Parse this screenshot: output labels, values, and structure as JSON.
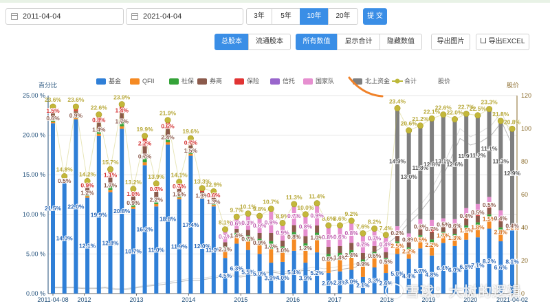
{
  "controls": {
    "start_date": "2011-04-04",
    "end_date": "2021-04-04",
    "period_buttons": [
      "3年",
      "5年",
      "10年",
      "20年"
    ],
    "period_active": 2,
    "submit": "提 交",
    "share_type_buttons": [
      "总股本",
      "流通股本"
    ],
    "share_type_active": 0,
    "display_buttons": [
      "所有数值",
      "显示合计",
      "隐藏数值"
    ],
    "display_active": 0,
    "export_image": "导出图片",
    "export_excel": "导出EXCEL"
  },
  "watermark": "雪球：大树的逻辑",
  "chart_data": {
    "type": "bar",
    "stacked": true,
    "left_axis_title": "百分比",
    "right_axis_title": "股价",
    "ylim": [
      0,
      25
    ],
    "y_ticks": [
      "0.00 %",
      "5.00 %",
      "10.00 %",
      "15.00 %",
      "20.00 %",
      "25.00 %"
    ],
    "y2lim": [
      0,
      120
    ],
    "y2_ticks": [
      "0",
      "20",
      "40",
      "60",
      "80",
      "100",
      "120"
    ],
    "x_tick_labels": [
      "2011-04-08",
      "2012",
      "2013",
      "2014",
      "2015",
      "2016",
      "2017",
      "2018",
      "2019",
      "2020",
      "2021-04-02"
    ],
    "x_tick_positions": [
      0,
      3,
      8,
      13,
      18,
      23,
      27,
      32,
      36,
      40,
      44
    ],
    "grid": true,
    "legend_position": "top",
    "legend": [
      {
        "name": "基金",
        "color": "#2f7fd7"
      },
      {
        "name": "QFII",
        "color": "#f58a23"
      },
      {
        "name": "社保",
        "color": "#35a339"
      },
      {
        "name": "券商",
        "color": "#8b5a4b"
      },
      {
        "name": "保险",
        "color": "#e13434"
      },
      {
        "name": "信托",
        "color": "#9966cc"
      },
      {
        "name": "国家队",
        "color": "#e68fd0"
      },
      {
        "name": "北上资金",
        "color": "#7f7f7f"
      },
      {
        "name": "合计",
        "color": "#bcb83a"
      },
      {
        "name": "股价",
        "color": "#cccccc"
      }
    ],
    "stack_order": [
      "基金",
      "QFII",
      "社保",
      "券商",
      "保险",
      "信托",
      "国家队",
      "北上资金"
    ],
    "totals": [
      23.6,
      14.8,
      23.6,
      14.2,
      22.6,
      15.7,
      23.9,
      13.2,
      19.9,
      13.9,
      21.9,
      14.1,
      19.6,
      13.3,
      12.9,
      8.1,
      9.7,
      10.1,
      9.8,
      10.7,
      8.9,
      11.3,
      10.0,
      11.4,
      8.6,
      8.6,
      9.2,
      7.6,
      8.2,
      7.4,
      23.4,
      20.6,
      21.2,
      22.1,
      22.6,
      22.0,
      22.7,
      22.5,
      23.3,
      21.8,
      20.8
    ],
    "total_labels": [
      "23.6%",
      "14.8%",
      "23.6%",
      "14.2%",
      "22.6%",
      "15.7%",
      "23.9%",
      "13.2%",
      "19.9%",
      "13.9%",
      "21.9%",
      "14.1%",
      "19.6%",
      "13.3%",
      "12.9%",
      "8.1%",
      "9.7%",
      "10.1%",
      "9.8%",
      "10.7%",
      "8.9%",
      "11.3%",
      "10.0%",
      "11.4%",
      "8.6%",
      "8.6%",
      "9.2%",
      "7.6%",
      "8.2%",
      "7.4%",
      "23.4%",
      "20.6%",
      "21.2%",
      "22.1%",
      "22.6%",
      "22.0%",
      "22.7%",
      "22.5%",
      "23.3%",
      "21.8%",
      "20.8%"
    ],
    "fund_values": [
      21.5,
      14.0,
      22.0,
      12.1,
      19.9,
      12.8,
      20.8,
      10.7,
      16.2,
      11.0,
      18.8,
      11.9,
      17.4,
      12.0,
      11.0,
      4.5,
      6.3,
      5.5,
      5.0,
      3.9,
      4.0,
      5.4,
      3.9,
      5.2,
      2.6,
      2.8,
      3.0,
      2.1,
      3.3,
      2.6,
      5.0,
      4.4,
      5.7,
      4.8,
      6.4,
      6.0,
      6.8,
      7.1,
      8.2,
      6.6,
      8.1
    ],
    "fund_labels": [
      "21.5%",
      "14.0%",
      "22.0%",
      "12.1%",
      "19.9%",
      "12.8%",
      "20.8%",
      "10.7%",
      "16.2%",
      "11.0%",
      "18.8%",
      "11.9%",
      "17.4%",
      "12.0%",
      "11.0%",
      "4.5%",
      "6.3%",
      "5.5%",
      "5.0%",
      "3.9%",
      "4.0%",
      "5.4%",
      "3.9%",
      "5.2%",
      "2.6%",
      "2.8%",
      "3.0%",
      "2.1%",
      "3.3%",
      "2.6%",
      "5.0%",
      "4.4%",
      "5.7%",
      "4.8%",
      "6.4%",
      "6.0%",
      "6.8%",
      "7.1%",
      "8.2%",
      "6.6%",
      "8.1%"
    ],
    "north_values": [
      0,
      0,
      0,
      0,
      0,
      0,
      0,
      0,
      0,
      0,
      0,
      0,
      0,
      0,
      0,
      0,
      0,
      0,
      0,
      0,
      0,
      0,
      0,
      0,
      0,
      0,
      0,
      0,
      0,
      0,
      14.9,
      13.0,
      11.8,
      12.8,
      13.1,
      12.6,
      11.9,
      11.2,
      11.1,
      11.3,
      12.9
    ],
    "north_labels": [
      "",
      "",
      "",
      "",
      "",
      "",
      "",
      "",
      "",
      "",
      "",
      "",
      "",
      "",
      "",
      "",
      "",
      "",
      "",
      "",
      "",
      "",
      "",
      "",
      "",
      "",
      "",
      "",
      "",
      "",
      "14.9%",
      "13.0%",
      "11.8%",
      "12.8%",
      "13.1%",
      "12.6%",
      "11.9%",
      "11.2%",
      "11.1%",
      "11.3%",
      "12.9%"
    ],
    "other_segment_labels": [
      [
        "0.6%",
        "1.5%"
      ],
      [
        "0.5%"
      ],
      [
        "0.9%"
      ],
      [
        "1.2%",
        "0.9%"
      ],
      [
        "1.4%",
        "0.8%"
      ],
      [
        "1.7%",
        "1.1%"
      ],
      [
        "1.7%",
        "1.4%"
      ],
      [
        "0.9%",
        "1.0%"
      ],
      [
        "0.7%",
        "2.2%"
      ],
      [
        "2.2%",
        "0.7%"
      ],
      [
        "2.4%",
        "0.6%"
      ],
      [
        "1.6%",
        "0.7%"
      ],
      [
        "1.5%",
        "0.7%"
      ],
      [
        "1.3%"
      ],
      [
        "1.3%",
        "0.6%"
      ],
      [
        "2.1%",
        "0.7%"
      ],
      [
        "1.4%",
        "0.6%"
      ],
      [
        "0.7%",
        "0.3%"
      ],
      [
        "0.9%",
        "0.6%"
      ],
      [
        "1.7%",
        "0.9%"
      ],
      [
        "1.0%",
        "0.9%"
      ],
      [
        "0.8%",
        "0.7%"
      ],
      [
        "1.2%",
        "0.8%"
      ],
      [
        "1.0%",
        "0.9%"
      ],
      [
        "0.6%",
        "0.8%"
      ],
      [
        "1.4%",
        "0.6%"
      ],
      [
        "2.4%",
        "0.8%"
      ],
      [
        "0.9%",
        "0.7%"
      ],
      [
        "0.6%",
        "0.7%"
      ],
      [
        "0.5%",
        "0.4%"
      ],
      [
        "2.5%",
        "0.2%"
      ],
      [
        "2.2%",
        "0.8%"
      ],
      [
        "0.5%",
        "0.3%"
      ],
      [
        "2.2%",
        "0.7%"
      ],
      [
        "1.7%",
        "0.5%"
      ],
      [
        "1.3%",
        "0.6%"
      ],
      [
        "1.5%",
        "0.4%"
      ],
      [
        "1.8%",
        "0.5%"
      ],
      [
        "1.5%",
        "0.5%"
      ],
      [
        "2.8%",
        "0.4%"
      ],
      [
        "1.6%",
        "0.4%"
      ]
    ],
    "price_series_a": [
      4,
      4,
      4,
      3.5,
      3.5,
      4,
      3,
      3,
      4,
      5,
      6,
      7,
      8,
      9,
      9,
      10,
      11,
      12,
      11,
      12,
      13,
      14,
      13,
      14,
      15,
      16,
      15,
      16,
      17,
      18,
      22,
      28,
      33,
      38,
      46,
      52,
      60,
      72,
      86,
      100,
      95,
      98,
      102,
      110,
      94
    ],
    "price_series_b": [
      3.5,
      3.5,
      3.5,
      3,
      3,
      3.5,
      2.5,
      2.5,
      3.5,
      4.5,
      5,
      6,
      7,
      8,
      8,
      9,
      10,
      11,
      10,
      11,
      12,
      13,
      12,
      13,
      14,
      14,
      13,
      14,
      15,
      16,
      20,
      26,
      30,
      35,
      42,
      48,
      56,
      66,
      80,
      94,
      90,
      92,
      96,
      104,
      90
    ]
  }
}
